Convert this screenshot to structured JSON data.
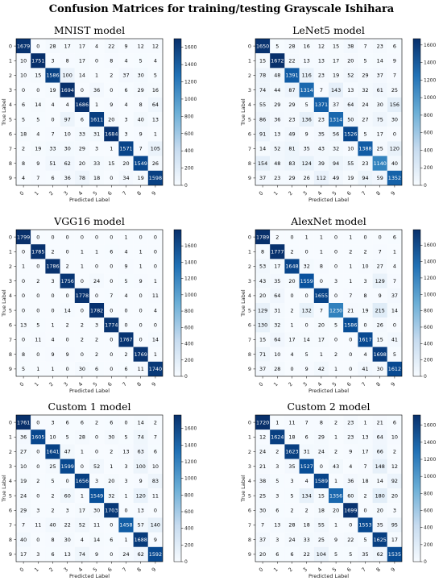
{
  "figure_title": "Confusion Matrices for training/testing Grayscale Ishihara",
  "colors": {
    "low": "#f7fbff",
    "high": "#08306b",
    "text_dark": "#000000",
    "text_light": "#ffffff"
  },
  "chart_data": [
    {
      "type": "heatmap",
      "title": "MNIST model",
      "xlabel": "Predicted Label",
      "ylabel": "True Label",
      "x_ticks": [
        "0",
        "1",
        "2",
        "3",
        "4",
        "5",
        "6",
        "7",
        "8",
        "9"
      ],
      "y_ticks": [
        "0",
        "1",
        "2",
        "3",
        "4",
        "5",
        "6",
        "7",
        "8",
        "9"
      ],
      "colorbar_ticks": [
        0,
        200,
        400,
        600,
        800,
        1000,
        1200,
        1400,
        1600
      ],
      "vmax": 1700,
      "matrix": [
        [
          1679,
          0,
          28,
          17,
          17,
          4,
          22,
          9,
          12,
          12
        ],
        [
          10,
          1751,
          3,
          8,
          17,
          0,
          8,
          4,
          5,
          4
        ],
        [
          10,
          15,
          1586,
          100,
          14,
          1,
          2,
          37,
          30,
          5
        ],
        [
          0,
          0,
          19,
          1694,
          0,
          36,
          0,
          6,
          29,
          16
        ],
        [
          6,
          14,
          4,
          4,
          1686,
          1,
          9,
          4,
          8,
          64
        ],
        [
          5,
          5,
          0,
          97,
          6,
          1611,
          20,
          3,
          40,
          13
        ],
        [
          18,
          4,
          7,
          10,
          33,
          31,
          1684,
          3,
          9,
          1
        ],
        [
          2,
          19,
          33,
          30,
          29,
          3,
          1,
          1571,
          7,
          105
        ],
        [
          8,
          9,
          51,
          62,
          20,
          33,
          15,
          20,
          1549,
          26
        ],
        [
          4,
          7,
          6,
          36,
          78,
          18,
          0,
          34,
          19,
          1598
        ]
      ]
    },
    {
      "type": "heatmap",
      "title": "LeNet5 model",
      "xlabel": "Predicted Label",
      "ylabel": "True Label",
      "x_ticks": [
        "0",
        "1",
        "2",
        "3",
        "4",
        "5",
        "6",
        "7",
        "8",
        "9"
      ],
      "y_ticks": [
        "0",
        "1",
        "2",
        "3",
        "4",
        "5",
        "6",
        "7",
        "8",
        "9"
      ],
      "colorbar_ticks": [
        0,
        200,
        400,
        600,
        800,
        1000,
        1200,
        1400,
        1600
      ],
      "vmax": 1672,
      "matrix": [
        [
          1650,
          5,
          28,
          16,
          12,
          15,
          38,
          7,
          23,
          6
        ],
        [
          15,
          1672,
          22,
          13,
          13,
          17,
          20,
          5,
          14,
          9
        ],
        [
          78,
          48,
          1391,
          116,
          23,
          19,
          52,
          29,
          37,
          7
        ],
        [
          74,
          44,
          87,
          1314,
          7,
          143,
          13,
          32,
          61,
          25
        ],
        [
          55,
          29,
          29,
          5,
          1371,
          37,
          64,
          24,
          30,
          156
        ],
        [
          86,
          36,
          23,
          136,
          23,
          1314,
          50,
          27,
          75,
          30
        ],
        [
          91,
          13,
          49,
          9,
          35,
          56,
          1526,
          5,
          17,
          0
        ],
        [
          14,
          52,
          81,
          35,
          43,
          32,
          10,
          1388,
          25,
          120
        ],
        [
          154,
          48,
          83,
          124,
          39,
          94,
          55,
          23,
          1140,
          40
        ],
        [
          37,
          23,
          29,
          26,
          112,
          49,
          19,
          94,
          59,
          1352
        ]
      ]
    },
    {
      "type": "heatmap",
      "title": "VGG16 model",
      "xlabel": "Predicted Label",
      "ylabel": "True Label",
      "x_ticks": [
        "0",
        "1",
        "2",
        "3",
        "4",
        "5",
        "6",
        "7",
        "8",
        "9"
      ],
      "y_ticks": [
        "0",
        "1",
        "2",
        "3",
        "4",
        "5",
        "6",
        "7",
        "8",
        "9"
      ],
      "colorbar_ticks": [
        0,
        200,
        400,
        600,
        800,
        1000,
        1200,
        1400,
        1600
      ],
      "vmax": 1799,
      "matrix": [
        [
          1799,
          0,
          0,
          0,
          0,
          0,
          0,
          1,
          0,
          0
        ],
        [
          0,
          1785,
          2,
          0,
          1,
          1,
          6,
          4,
          1,
          0
        ],
        [
          1,
          0,
          1786,
          2,
          1,
          0,
          0,
          9,
          1,
          0
        ],
        [
          0,
          2,
          3,
          1756,
          0,
          24,
          0,
          5,
          9,
          1
        ],
        [
          0,
          0,
          0,
          0,
          1778,
          0,
          7,
          4,
          0,
          11
        ],
        [
          0,
          0,
          0,
          14,
          0,
          1782,
          0,
          0,
          0,
          4
        ],
        [
          13,
          5,
          1,
          2,
          2,
          3,
          1774,
          0,
          0,
          0
        ],
        [
          0,
          11,
          4,
          0,
          2,
          2,
          0,
          1767,
          0,
          14
        ],
        [
          8,
          0,
          9,
          9,
          0,
          2,
          0,
          2,
          1769,
          1
        ],
        [
          5,
          1,
          1,
          0,
          30,
          6,
          0,
          6,
          11,
          1740
        ]
      ]
    },
    {
      "type": "heatmap",
      "title": "AlexNet model",
      "xlabel": "Predicted Label",
      "ylabel": "True Label",
      "x_ticks": [
        "0",
        "1",
        "2",
        "3",
        "4",
        "5",
        "6",
        "7",
        "8",
        "9"
      ],
      "y_ticks": [
        "0",
        "1",
        "2",
        "3",
        "4",
        "5",
        "6",
        "7",
        "8",
        "9"
      ],
      "colorbar_ticks": [
        0,
        200,
        400,
        600,
        800,
        1000,
        1200,
        1400,
        1600
      ],
      "vmax": 1789,
      "matrix": [
        [
          1789,
          2,
          0,
          1,
          1,
          0,
          1,
          0,
          0,
          6
        ],
        [
          8,
          1777,
          2,
          0,
          1,
          0,
          2,
          2,
          7,
          1
        ],
        [
          53,
          17,
          1648,
          32,
          8,
          0,
          1,
          10,
          27,
          4
        ],
        [
          43,
          35,
          20,
          1559,
          0,
          3,
          1,
          3,
          129,
          7
        ],
        [
          20,
          64,
          0,
          0,
          1655,
          0,
          7,
          8,
          9,
          37
        ],
        [
          129,
          31,
          2,
          132,
          7,
          1230,
          21,
          19,
          215,
          14
        ],
        [
          130,
          32,
          1,
          0,
          20,
          5,
          1586,
          0,
          26,
          0
        ],
        [
          15,
          64,
          17,
          14,
          17,
          0,
          0,
          1617,
          15,
          41
        ],
        [
          71,
          10,
          4,
          5,
          1,
          2,
          0,
          4,
          1698,
          5
        ],
        [
          37,
          28,
          0,
          9,
          42,
          1,
          0,
          41,
          30,
          1612
        ]
      ]
    },
    {
      "type": "heatmap",
      "title": "Custom 1 model",
      "xlabel": "Predicted Label",
      "ylabel": "True Label",
      "x_ticks": [
        "0",
        "1",
        "2",
        "3",
        "4",
        "5",
        "6",
        "7",
        "8",
        "9"
      ],
      "y_ticks": [
        "0",
        "1",
        "2",
        "3",
        "4",
        "5",
        "6",
        "7",
        "8",
        "9"
      ],
      "colorbar_ticks": [
        0,
        200,
        400,
        600,
        800,
        1000,
        1200,
        1400,
        1600
      ],
      "vmax": 1761,
      "matrix": [
        [
          1761,
          0,
          3,
          6,
          6,
          2,
          6,
          0,
          14,
          2
        ],
        [
          36,
          1605,
          10,
          5,
          28,
          0,
          30,
          5,
          74,
          7
        ],
        [
          27,
          0,
          1641,
          47,
          1,
          0,
          2,
          13,
          63,
          6
        ],
        [
          10,
          0,
          25,
          1599,
          0,
          52,
          1,
          3,
          100,
          10
        ],
        [
          19,
          2,
          5,
          0,
          1656,
          3,
          20,
          3,
          9,
          83
        ],
        [
          24,
          0,
          2,
          60,
          1,
          1549,
          32,
          1,
          120,
          11
        ],
        [
          29,
          3,
          2,
          3,
          17,
          30,
          1703,
          0,
          13,
          0
        ],
        [
          7,
          11,
          40,
          22,
          52,
          11,
          0,
          1458,
          57,
          140
        ],
        [
          40,
          0,
          8,
          30,
          4,
          14,
          6,
          1,
          1688,
          9
        ],
        [
          17,
          3,
          6,
          13,
          74,
          9,
          0,
          24,
          62,
          1592
        ]
      ]
    },
    {
      "type": "heatmap",
      "title": "Custom 2 model",
      "xlabel": "Predicted Label",
      "ylabel": "True Label",
      "x_ticks": [
        "0",
        "1",
        "2",
        "3",
        "4",
        "5",
        "6",
        "7",
        "8",
        "9"
      ],
      "y_ticks": [
        "0",
        "1",
        "2",
        "3",
        "4",
        "5",
        "6",
        "7",
        "8",
        "9"
      ],
      "colorbar_ticks": [
        0,
        200,
        400,
        600,
        800,
        1000,
        1200,
        1400,
        1600
      ],
      "vmax": 1720,
      "matrix": [
        [
          1720,
          1,
          11,
          7,
          8,
          2,
          23,
          1,
          21,
          6
        ],
        [
          12,
          1624,
          18,
          6,
          29,
          1,
          23,
          13,
          64,
          10
        ],
        [
          24,
          2,
          1623,
          31,
          24,
          2,
          9,
          17,
          66,
          2
        ],
        [
          21,
          3,
          35,
          1527,
          0,
          43,
          4,
          7,
          148,
          12
        ],
        [
          38,
          5,
          3,
          4,
          1589,
          1,
          36,
          18,
          14,
          92
        ],
        [
          25,
          3,
          5,
          134,
          15,
          1356,
          60,
          2,
          180,
          20
        ],
        [
          30,
          6,
          2,
          2,
          18,
          20,
          1699,
          0,
          20,
          3
        ],
        [
          7,
          13,
          28,
          18,
          55,
          1,
          0,
          1553,
          35,
          95
        ],
        [
          37,
          3,
          24,
          33,
          25,
          9,
          22,
          5,
          1625,
          17
        ],
        [
          20,
          6,
          6,
          22,
          104,
          5,
          5,
          35,
          62,
          1535
        ]
      ]
    }
  ]
}
